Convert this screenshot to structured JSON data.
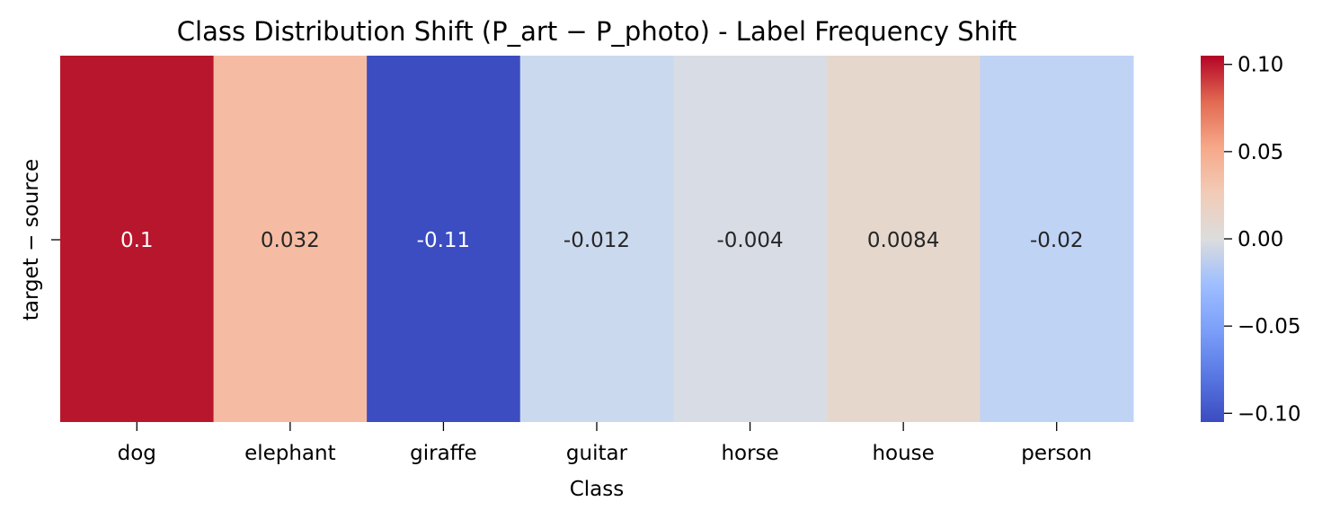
{
  "chart_data": {
    "type": "heatmap",
    "title": "Class Distribution Shift (P_art − P_photo) - Label Frequency Shift",
    "xlabel": "Class",
    "ylabel": "target − source",
    "categories": [
      "dog",
      "elephant",
      "giraffe",
      "guitar",
      "horse",
      "house",
      "person"
    ],
    "values": [
      0.1,
      0.032,
      -0.11,
      -0.012,
      -0.004,
      0.0084,
      -0.02
    ],
    "annotations": [
      "0.1",
      "0.032",
      "-0.11",
      "-0.012",
      "-0.004",
      "0.0084",
      "-0.02"
    ],
    "colormap": "coolwarm",
    "vmin": -0.105,
    "vmax": 0.105,
    "colorbar_ticks": [
      0.1,
      0.05,
      0.0,
      -0.05,
      -0.1
    ],
    "colorbar_tick_labels": [
      "0.10",
      "0.05",
      "0.00",
      "−0.05",
      "−0.10"
    ],
    "colors": {
      "dog": "#b8162c",
      "elephant": "#f5bca3",
      "giraffe": "#3b4dc0",
      "guitar": "#cbd9ee",
      "horse": "#d8dce5",
      "house": "#e6d7cd",
      "person": "#bfd3f5",
      "text_dark": "#262626",
      "text_light": "#ffffff"
    },
    "grid": false
  }
}
